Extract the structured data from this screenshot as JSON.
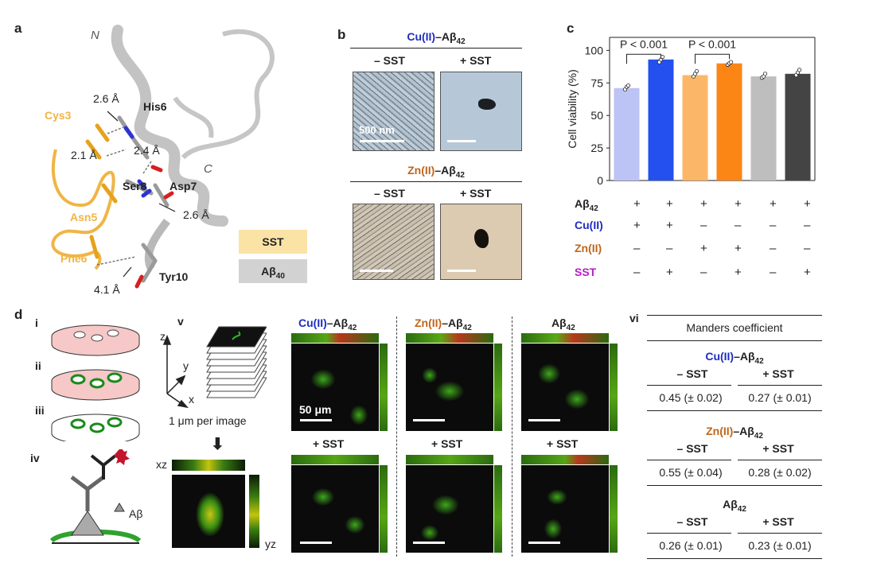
{
  "panels": {
    "a": {
      "letter": "a",
      "n_term": "N",
      "c_term": "C",
      "residues": {
        "his6": "His6",
        "cys3": "Cys3",
        "ser8": "Ser8",
        "asp7": "Asp7",
        "asn5": "Asn5",
        "phe6": "Phe6",
        "tyr10": "Tyr10"
      },
      "distances": [
        "2.6 Å",
        "2.1 Å",
        "2.4 Å",
        "2.6 Å",
        "4.1 Å"
      ],
      "legend": {
        "sst": "SST",
        "abeta": "Aβ",
        "abeta_sub": "40"
      },
      "colors": {
        "sst": "#f0b545",
        "abeta": "#b9b9b9",
        "legend_sst_bg": "#fbe3a6",
        "legend_abeta_bg": "#d2d2d2"
      }
    },
    "b": {
      "letter": "b",
      "group1": {
        "metal": "Cu(II)",
        "peptide": "–Aβ",
        "sub": "42",
        "minus": "– SST",
        "plus": "+ SST",
        "scale": "500 nm"
      },
      "group2": {
        "metal": "Zn(II)",
        "peptide": "–Aβ",
        "sub": "42",
        "minus": "– SST",
        "plus": "+ SST"
      }
    },
    "c": {
      "letter": "c",
      "row_labels": {
        "abeta": "Aβ",
        "abeta_sub": "42",
        "cu": "Cu(II)",
        "zn": "Zn(II)",
        "sst": "SST"
      },
      "rows": {
        "abeta": [
          "+",
          "+",
          "+",
          "+",
          "+",
          "+"
        ],
        "cu": [
          "+",
          "+",
          "–",
          "–",
          "–",
          "–"
        ],
        "zn": [
          "–",
          "–",
          "+",
          "+",
          "–",
          "–"
        ],
        "sst": [
          "–",
          "+",
          "–",
          "+",
          "–",
          "+"
        ]
      },
      "p_labels": [
        "P < 0.001",
        "P < 0.001"
      ]
    },
    "d": {
      "letter": "d",
      "steps": [
        "i",
        "ii",
        "iii",
        "iv",
        "v",
        "vi"
      ],
      "iv_label": "Aβ",
      "v": {
        "z": "z",
        "y": "y",
        "x": "x",
        "caption": "1 μm per image",
        "xz": "xz",
        "yz": "yz"
      },
      "columns": [
        {
          "metal": "Cu(II)",
          "peptide": "–Aβ",
          "sub": "42"
        },
        {
          "metal": "Zn(II)",
          "peptide": "–Aβ",
          "sub": "42"
        },
        {
          "metal": "",
          "peptide": "Aβ",
          "sub": "42"
        }
      ],
      "plus_sst": "+ SST",
      "scale": "50 μm",
      "table": {
        "title": "Manders coefficient",
        "groups": [
          {
            "metal": "Cu(II)",
            "peptide": "–Aβ",
            "sub": "42",
            "minus": "– SST",
            "plus": "+ SST",
            "v_minus": "0.45 (± 0.02)",
            "v_plus": "0.27 (± 0.01)"
          },
          {
            "metal": "Zn(II)",
            "peptide": "–Aβ",
            "sub": "42",
            "minus": "– SST",
            "plus": "+ SST",
            "v_minus": "0.55 (± 0.04)",
            "v_plus": "0.28 (± 0.02)"
          },
          {
            "metal": "",
            "peptide": "Aβ",
            "sub": "42",
            "minus": "– SST",
            "plus": "+ SST",
            "v_minus": "0.26 (± 0.01)",
            "v_plus": "0.23 (± 0.01)"
          }
        ]
      }
    }
  },
  "chart_data": {
    "type": "bar",
    "categories": [
      "1",
      "2",
      "3",
      "4",
      "5",
      "6"
    ],
    "values": [
      71,
      93,
      81,
      90,
      80,
      82
    ],
    "points": [
      [
        70,
        72,
        73
      ],
      [
        91,
        93,
        95
      ],
      [
        80,
        82,
        84
      ],
      [
        89,
        90,
        91
      ],
      [
        79,
        80,
        82
      ],
      [
        81,
        83,
        85
      ]
    ],
    "colors": [
      "#bcc3f5",
      "#2450f0",
      "#fbb767",
      "#fb8616",
      "#bebebe",
      "#444444"
    ],
    "ylabel": "Cell viability (%)",
    "yticks": [
      0,
      25,
      50,
      75,
      100
    ],
    "ylim": [
      0,
      110
    ]
  }
}
